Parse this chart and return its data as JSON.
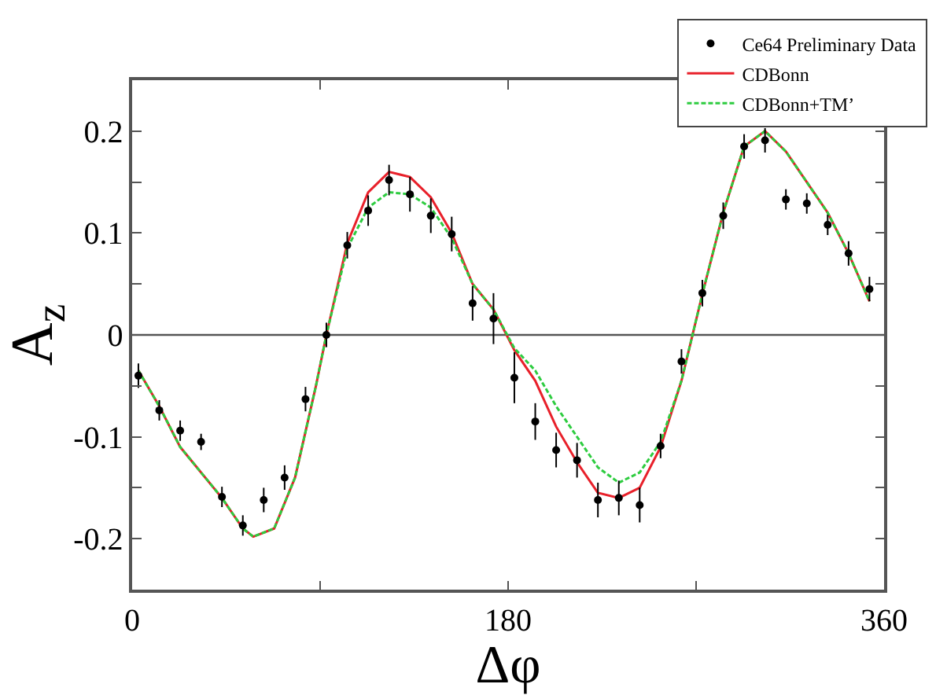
{
  "chart_data": {
    "type": "scatter",
    "xlabel": "Δφ",
    "ylabel": "A$_{z}$",
    "xlim": [
      0,
      360
    ],
    "ylim": [
      -0.25,
      0.25
    ],
    "xticks": [
      0,
      {
        "value": 90,
        "label": null
      },
      180,
      {
        "value": 270,
        "label": null
      },
      360
    ],
    "yticks": [
      {
        "value": -0.25,
        "label": null
      },
      -0.2,
      {
        "value": -0.15,
        "label": null
      },
      -0.1,
      {
        "value": -0.05,
        "label": null
      },
      0,
      {
        "value": 0.05,
        "label": null
      },
      0.1,
      {
        "value": 0.15,
        "label": null
      },
      0.2,
      {
        "value": 0.25,
        "label": null
      }
    ],
    "grid": false,
    "legend": "top right",
    "ref_lines": [
      {
        "axis": "y",
        "value": 0,
        "color": "#555555"
      }
    ],
    "series": [
      {
        "name": "Ce64 Preliminary Data",
        "type": "scatter",
        "color": "#000000",
        "marker": "circle",
        "x": [
          3,
          13,
          23,
          33,
          43,
          53,
          63,
          73,
          83,
          93,
          103,
          113,
          123,
          133,
          143,
          153,
          163,
          173,
          183,
          193,
          203,
          213,
          223,
          233,
          243,
          253,
          263,
          273,
          283,
          293,
          303,
          313,
          323,
          333,
          343,
          353
        ],
        "values": [
          -0.04,
          -0.074,
          -0.094,
          -0.105,
          -0.159,
          -0.187,
          -0.162,
          -0.14,
          -0.063,
          0.0,
          0.088,
          0.122,
          0.152,
          0.138,
          0.117,
          0.099,
          0.031,
          0.016,
          -0.042,
          -0.085,
          -0.113,
          -0.123,
          -0.162,
          -0.16,
          -0.167,
          -0.109,
          -0.026,
          0.041,
          0.117,
          0.185,
          0.191,
          0.133,
          0.129,
          0.108,
          0.08,
          0.045
        ],
        "errors": [
          0.012,
          0.01,
          0.01,
          0.008,
          0.01,
          0.01,
          0.012,
          0.012,
          0.012,
          0.012,
          0.013,
          0.015,
          0.015,
          0.017,
          0.017,
          0.017,
          0.017,
          0.025,
          0.025,
          0.018,
          0.017,
          0.017,
          0.017,
          0.017,
          0.017,
          0.012,
          0.012,
          0.013,
          0.013,
          0.012,
          0.012,
          0.01,
          0.01,
          0.01,
          0.012,
          0.012
        ]
      },
      {
        "name": "CDBonn",
        "type": "line",
        "color": "#e8202a",
        "line_style": "solid",
        "x": [
          3,
          13,
          23,
          33,
          43,
          53,
          58,
          68,
          78,
          88,
          93,
          103,
          113,
          123,
          133,
          143,
          153,
          163,
          173,
          183,
          193,
          203,
          213,
          223,
          233,
          243,
          253,
          263,
          273,
          283,
          293,
          303,
          313,
          323,
          333,
          343,
          353
        ],
        "values": [
          -0.035,
          -0.07,
          -0.11,
          -0.135,
          -0.16,
          -0.19,
          -0.198,
          -0.19,
          -0.14,
          -0.05,
          0.0,
          0.09,
          0.14,
          0.16,
          0.155,
          0.135,
          0.1,
          0.05,
          0.025,
          -0.015,
          -0.045,
          -0.09,
          -0.125,
          -0.155,
          -0.16,
          -0.15,
          -0.11,
          -0.045,
          0.04,
          0.12,
          0.185,
          0.2,
          0.18,
          0.15,
          0.12,
          0.08,
          0.033
        ]
      },
      {
        "name": "CDBonn+TM’",
        "type": "line",
        "color": "#2ecc40",
        "line_style": "dashed",
        "x": [
          3,
          13,
          23,
          33,
          43,
          53,
          58,
          68,
          78,
          88,
          93,
          103,
          113,
          123,
          133,
          143,
          153,
          163,
          173,
          183,
          193,
          203,
          213,
          223,
          233,
          243,
          253,
          263,
          273,
          283,
          293,
          303,
          313,
          323,
          333,
          343,
          353
        ],
        "values": [
          -0.035,
          -0.07,
          -0.11,
          -0.135,
          -0.16,
          -0.19,
          -0.198,
          -0.19,
          -0.14,
          -0.05,
          0.0,
          0.085,
          0.125,
          0.14,
          0.138,
          0.125,
          0.095,
          0.05,
          0.025,
          -0.013,
          -0.035,
          -0.07,
          -0.1,
          -0.13,
          -0.145,
          -0.135,
          -0.105,
          -0.045,
          0.04,
          0.12,
          0.185,
          0.2,
          0.18,
          0.15,
          0.12,
          0.08,
          0.033
        ]
      }
    ]
  }
}
